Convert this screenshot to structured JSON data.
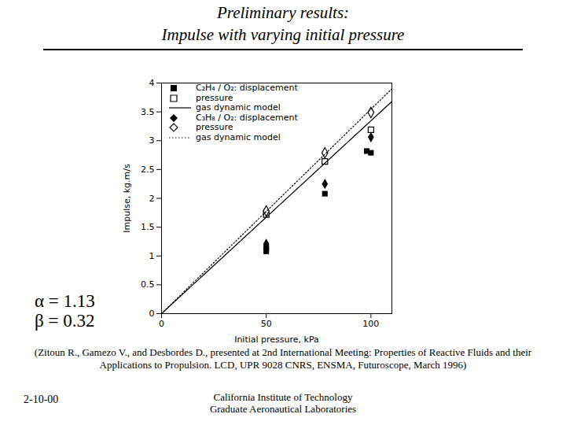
{
  "chart_data": {
    "type": "scatter",
    "title": "Preliminary results:",
    "subtitle": "Impulse with varying initial pressure",
    "xlabel": "Initial pressure, kPa",
    "ylabel": "Impulse, kg.m/s",
    "xlim": [
      0,
      110
    ],
    "xticks": [
      0,
      50,
      100
    ],
    "ylim": [
      0,
      4
    ],
    "yticks": [
      0,
      0.5,
      1,
      1.5,
      2,
      2.5,
      3,
      3.5,
      4
    ],
    "grid": false,
    "legend": "top-left",
    "series": [
      {
        "name": "C₂H₄ / O₂: displacement",
        "type": "scatter",
        "marker": "square",
        "color": "#000000",
        "x": [
          50,
          50,
          78,
          98,
          100
        ],
        "values": [
          1.08,
          1.15,
          2.08,
          2.82,
          2.79
        ]
      },
      {
        "name": "pressure",
        "type": "scatter",
        "marker": "square-open",
        "color": "#000000",
        "x": [
          50,
          78,
          100
        ],
        "values": [
          1.72,
          2.64,
          3.19
        ]
      },
      {
        "name": "gas dynamic model",
        "type": "line",
        "line_style": "solid",
        "color": "#000000",
        "x": [
          0,
          110
        ],
        "values": [
          0,
          3.68
        ]
      },
      {
        "name": "C₃H₈ / O₂: displacement",
        "type": "scatter",
        "marker": "diamond",
        "color": "#000000",
        "x": [
          50,
          50,
          78,
          100
        ],
        "values": [
          1.21,
          1.14,
          2.25,
          3.06
        ]
      },
      {
        "name": "pressure",
        "type": "scatter",
        "marker": "diamond-open",
        "color": "#000000",
        "x": [
          50,
          78,
          100
        ],
        "values": [
          1.78,
          2.79,
          3.49
        ]
      },
      {
        "name": "gas dynamic model",
        "type": "line",
        "line_style": "dotted",
        "color": "#000000",
        "x": [
          0,
          110
        ],
        "values": [
          0,
          3.9
        ]
      }
    ],
    "annotations": [
      "α = 1.13",
      "β = 0.32"
    ],
    "caption": "(Zitoun R., Gamezo V., and Desbordes D., presented at 2nd International Meeting: Properties of Reactive Fluids and their Applications to Propulsion. LCD, UPR 9028 CNRS, ENSMA, Futuroscope, March 1996)",
    "footer": [
      "2-10-00",
      "California Institute of Technology",
      "Graduate Aeronautical Laboratories"
    ]
  }
}
